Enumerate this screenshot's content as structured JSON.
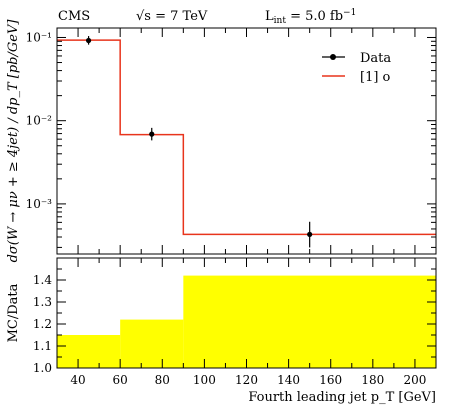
{
  "header": {
    "experiment": "CMS",
    "sqrt_s_prefix": "√s",
    "sqrt_s_value": " = 7 TeV",
    "lumi_prefix": "L",
    "lumi_sub": "int",
    "lumi_value": " = 5.0 fb",
    "lumi_sup": "−1"
  },
  "chart_data": [
    {
      "panel": "main",
      "type": "line",
      "yscale": "log",
      "ylabel": "dσ(W → μν + ≥ 4jet) / dp_T [pb/GeV]",
      "xlim": [
        30,
        210
      ],
      "ylim": [
        0.00025,
        0.13
      ],
      "y_tick_labels": [
        "10⁻¹",
        "10⁻²",
        "10⁻³"
      ],
      "y_tick_values": [
        0.1,
        0.01,
        0.001
      ],
      "legend": {
        "position": "top-right",
        "data_label": "Data",
        "mc_label": "[1] o"
      },
      "data_points": [
        {
          "x": 45,
          "y": 0.092,
          "yerr_low": 0.01,
          "yerr_high": 0.012
        },
        {
          "x": 75,
          "y": 0.0069,
          "yerr_low": 0.0011,
          "yerr_high": 0.0013
        },
        {
          "x": 150,
          "y": 0.00043,
          "yerr_low": 0.00013,
          "yerr_high": 0.00018
        }
      ],
      "mc_histogram": {
        "bin_edges": [
          30,
          60,
          90,
          210
        ],
        "values": [
          0.093,
          0.0068,
          0.00043
        ],
        "color": "#e8341c"
      }
    },
    {
      "panel": "ratio",
      "type": "area",
      "ylabel": "MC/Data",
      "xlabel": "Fourth leading jet p_T [GeV]",
      "xlim": [
        30,
        210
      ],
      "ylim": [
        1.0,
        1.5
      ],
      "x_tick_values": [
        40,
        60,
        80,
        100,
        120,
        140,
        160,
        180,
        200
      ],
      "y_tick_values": [
        1.0,
        1.1,
        1.2,
        1.3,
        1.4
      ],
      "band": {
        "bin_edges": [
          30,
          60,
          90,
          210
        ],
        "upper": [
          1.15,
          1.22,
          1.42
        ],
        "lower": [
          1.0,
          1.0,
          1.0
        ],
        "color": "#ffff00"
      }
    }
  ]
}
